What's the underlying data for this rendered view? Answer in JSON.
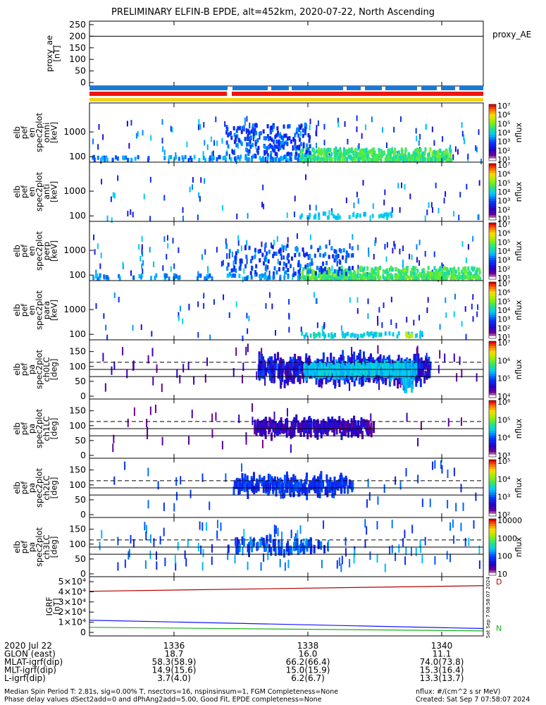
{
  "title": "PRELIMINARY ELFIN-B EPDE, alt=452km, 2020-07-22, North Ascending",
  "proxy_ae_legend": "proxy_AE",
  "colors": {
    "bar_blue": "#1a78d6",
    "bar_red": "#f2140f",
    "bar_yellow": "#f5d21a",
    "igrf_red": "#b40000",
    "igrf_blue": "#1414ff",
    "igrf_green": "#18b418"
  },
  "chart_data": [
    {
      "type": "line",
      "ylabel": "proxy_ae [nT]",
      "yticks": [
        "250",
        "200",
        "150",
        "100",
        "50",
        "0"
      ],
      "ylim": [
        -15,
        265
      ],
      "series": [
        {
          "values": [
            200,
            200
          ]
        }
      ]
    },
    {
      "type": "heatmap",
      "ylabel": [
        "elb",
        "pef",
        "en",
        "spec2plot",
        "omni",
        "[keV]"
      ],
      "yticks": [
        "1000",
        "100"
      ],
      "scale": "log",
      "colorbar": {
        "label": "nflux",
        "ticks": [
          "10⁷",
          "10⁶",
          "10⁵",
          "10⁴",
          "10³",
          "10²",
          "10¹"
        ]
      }
    },
    {
      "type": "heatmap",
      "ylabel": [
        "elb",
        "pef",
        "en",
        "spec2plot",
        "anti",
        "[keV]"
      ],
      "yticks": [
        "1000",
        "100"
      ],
      "scale": "log",
      "colorbar": {
        "label": "nflux",
        "ticks": [
          "10⁷",
          "10⁶",
          "10⁵",
          "10⁴",
          "10³",
          "10²",
          "10¹"
        ]
      }
    },
    {
      "type": "heatmap",
      "ylabel": [
        "elb",
        "pef",
        "en",
        "spec2plot",
        "perp",
        "[keV]"
      ],
      "yticks": [
        "1000",
        "100"
      ],
      "scale": "log",
      "colorbar": {
        "label": "nflux",
        "ticks": [
          "10⁷",
          "10⁶",
          "10⁵",
          "10⁴",
          "10³",
          "10²",
          "10¹"
        ]
      }
    },
    {
      "type": "heatmap",
      "ylabel": [
        "elb",
        "pef",
        "en",
        "spec2plot",
        "para",
        "[keV]"
      ],
      "yticks": [
        "1000",
        "100"
      ],
      "scale": "log",
      "colorbar": {
        "label": "nflux",
        "ticks": [
          "10⁷",
          "10⁶",
          "10⁵",
          "10⁴",
          "10³",
          "10²",
          "10¹"
        ]
      }
    },
    {
      "type": "heatmap",
      "ylabel": [
        "elb",
        "pef",
        "pa",
        "spec2plot",
        "ch0LC",
        "[deg]"
      ],
      "yticks": [
        "150",
        "100",
        "50",
        "0"
      ],
      "ylim": [
        0,
        180
      ],
      "reference_lines": [
        {
          "value": 114,
          "style": "dashed"
        },
        {
          "value": 90,
          "style": "solid"
        },
        {
          "value": 66,
          "style": "solid"
        }
      ],
      "colorbar": {
        "label": "nflux",
        "ticks": [
          "10⁷",
          "10⁶",
          "10⁵",
          "10⁴"
        ]
      }
    },
    {
      "type": "heatmap",
      "ylabel": [
        "elb",
        "pef",
        "pa",
        "spec2plot",
        "ch1LC",
        "[deg]"
      ],
      "yticks": [
        "150",
        "100",
        "50",
        "0"
      ],
      "ylim": [
        0,
        180
      ],
      "reference_lines": [
        {
          "value": 114,
          "style": "dashed"
        },
        {
          "value": 90,
          "style": "solid"
        },
        {
          "value": 66,
          "style": "solid"
        }
      ],
      "colorbar": {
        "label": "nflux",
        "ticks": [
          "10⁶",
          "10⁵",
          "10⁴",
          "10³"
        ]
      }
    },
    {
      "type": "heatmap",
      "ylabel": [
        "elb",
        "pef",
        "pa",
        "spec2plot",
        "ch2LC",
        "[deg]"
      ],
      "yticks": [
        "150",
        "100",
        "50",
        "0"
      ],
      "ylim": [
        0,
        180
      ],
      "reference_lines": [
        {
          "value": 114,
          "style": "dashed"
        },
        {
          "value": 90,
          "style": "solid"
        },
        {
          "value": 66,
          "style": "solid"
        }
      ],
      "colorbar": {
        "label": "nflux",
        "ticks": [
          "10⁵",
          "10⁴",
          "10³",
          "10²"
        ]
      }
    },
    {
      "type": "heatmap",
      "ylabel": [
        "elb",
        "pef",
        "pa",
        "spec2plot",
        "ch3LC",
        "[deg]"
      ],
      "yticks": [
        "150",
        "100",
        "50",
        "0"
      ],
      "ylim": [
        0,
        180
      ],
      "reference_lines": [
        {
          "value": 114,
          "style": "dashed"
        },
        {
          "value": 90,
          "style": "solid"
        },
        {
          "value": 66,
          "style": "solid"
        }
      ],
      "colorbar": {
        "label": "nflux",
        "ticks": [
          "10000",
          "1000",
          "100",
          "10"
        ]
      }
    },
    {
      "type": "line",
      "ylabel": "IGRF [nT]",
      "yticks": [
        "5×10⁴",
        "4×10⁴",
        "3×10⁴",
        "2×10⁴",
        "1×10⁴",
        "0"
      ],
      "ylim": [
        0,
        50000
      ],
      "series": [
        {
          "values": [
            40500,
            46000
          ]
        },
        {
          "values": [
            12000,
            3800
          ]
        },
        {
          "values": [
            5000,
            1500
          ]
        }
      ],
      "end_labels": [
        "D",
        "N"
      ]
    }
  ],
  "x_axis": {
    "tick_labels": [
      "1336",
      "1338",
      "1340"
    ],
    "rows": [
      {
        "label": "2020 Jul 22",
        "values": [
          "1336",
          "1338",
          "1340"
        ]
      },
      {
        "label": "GLON (east)",
        "values": [
          "18.7",
          "16.0",
          "11.1"
        ]
      },
      {
        "label": "MLAT-igrf(dip)",
        "values": [
          "58.3(58.9)",
          "66.2(66.4)",
          "74.0(73.8)"
        ]
      },
      {
        "label": "MLT-igrf(dip)",
        "values": [
          "14.9(15.6)",
          "15.0(15.9)",
          "15.3(16.4)"
        ]
      },
      {
        "label": "L-igrf(dip)",
        "values": [
          "3.7(4.0)",
          "6.2(6.7)",
          "13.3(13.7)"
        ]
      }
    ]
  },
  "footer": {
    "line1": "Median Spin Period T: 2.81s, sig=0.00% T, nsectors=16, nspinsinsum=1, FGM Completeness=None",
    "line2": "Phase delay values dSect2add=0 and dPhAng2add=5.00, Good Fit, EPDE completeness=None",
    "right1": "nflux: #/(cm^2 s sr MeV)",
    "right2": "Created: Sat Sep  7 07:58:07 2024"
  },
  "timestamp_vertical": "Sat Sep  7 08:58:07 2024"
}
